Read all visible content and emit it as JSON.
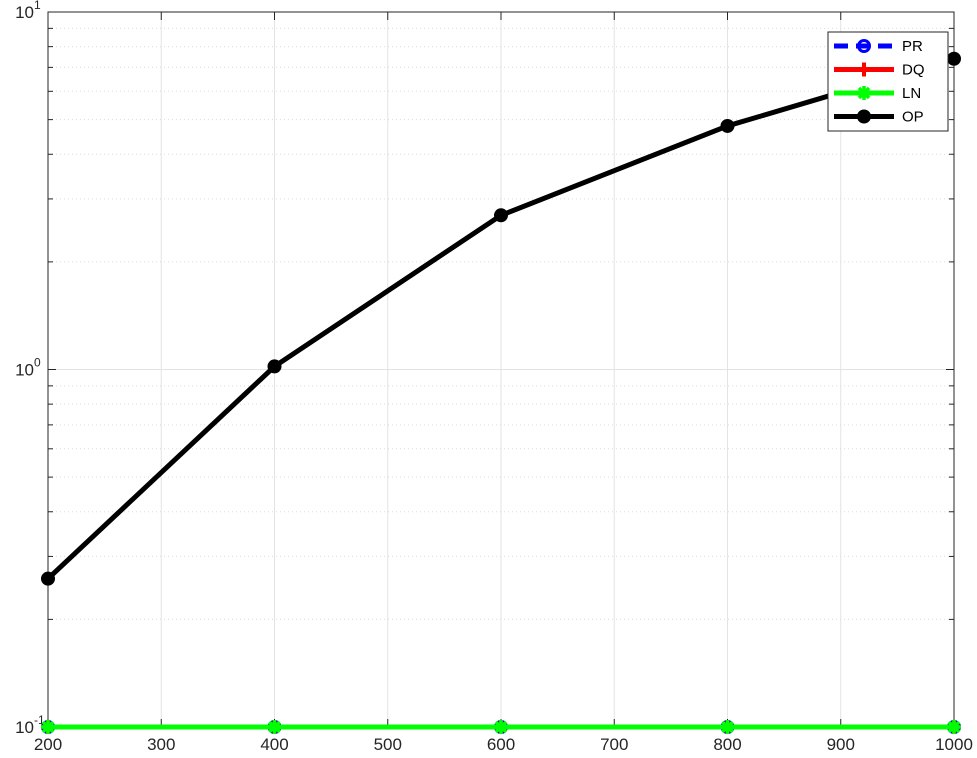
{
  "chart_data": {
    "type": "line",
    "title": "",
    "xlabel": "",
    "ylabel": "",
    "x": [
      200,
      400,
      600,
      800,
      1000
    ],
    "xlim": [
      200,
      1000
    ],
    "ylim": [
      0.1,
      10
    ],
    "yscale": "log",
    "grid": true,
    "legend_position": "top-right",
    "x_ticks": [
      200,
      300,
      400,
      500,
      600,
      700,
      800,
      900,
      1000
    ],
    "x_tick_labels": [
      "200",
      "300",
      "400",
      "500",
      "600",
      "700",
      "800",
      "900",
      "1000"
    ],
    "y_ticks": [
      {
        "value": 0.1,
        "base": "10",
        "exp": "-1"
      },
      {
        "value": 1,
        "base": "10",
        "exp": "0"
      },
      {
        "value": 10,
        "base": "10",
        "exp": "1"
      }
    ],
    "series": [
      {
        "name": "PR",
        "color": "#0000ff",
        "dash": true,
        "marker": "circle-open",
        "values": [
          0.1,
          0.1,
          0.1,
          0.1,
          0.1
        ]
      },
      {
        "name": "DQ",
        "color": "#ff0000",
        "dash": false,
        "marker": "plus",
        "values": [
          0.1,
          0.1,
          0.1,
          0.1,
          0.1
        ]
      },
      {
        "name": "LN",
        "color": "#00ff00",
        "dash": false,
        "marker": "star",
        "values": [
          0.1,
          0.1,
          0.1,
          0.1,
          0.1
        ]
      },
      {
        "name": "OP",
        "color": "#000000",
        "dash": false,
        "marker": "circle-filled",
        "values": [
          0.26,
          1.02,
          2.7,
          4.8,
          7.4
        ]
      }
    ]
  }
}
